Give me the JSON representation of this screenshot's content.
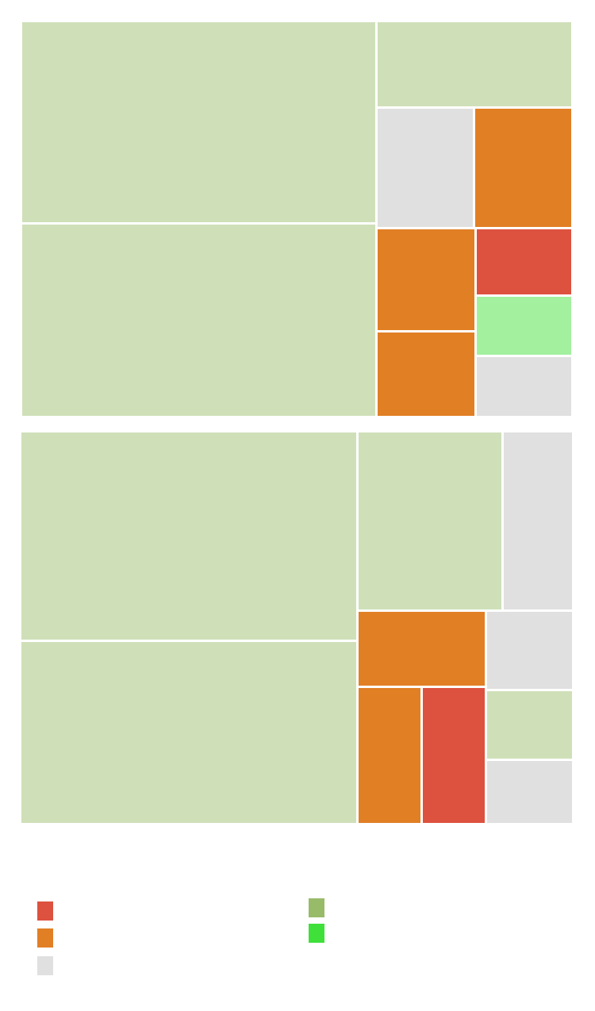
{
  "chart_data": [
    {
      "type": "treemap",
      "title": "",
      "tiles": [
        {
          "category": "c2",
          "value": 110000
        },
        {
          "category": "c2",
          "value": 105000
        },
        {
          "category": "c2",
          "value": 26000
        },
        {
          "category": "c3",
          "value": 18000
        },
        {
          "category": "c1",
          "value": 18000
        },
        {
          "category": "c1",
          "value": 15600
        },
        {
          "category": "c1",
          "value": 13000
        },
        {
          "category": "c0",
          "value": 10000
        },
        {
          "category": "c4",
          "value": 9000
        },
        {
          "category": "c3",
          "value": 9000
        }
      ]
    },
    {
      "type": "treemap",
      "title": "",
      "tiles": [
        {
          "category": "c2",
          "value": 109000
        },
        {
          "category": "c2",
          "value": 95000
        },
        {
          "category": "c2",
          "value": 40000
        },
        {
          "category": "c3",
          "value": 19500
        },
        {
          "category": "c1",
          "value": 15000
        },
        {
          "category": "c1",
          "value": 13600
        },
        {
          "category": "c0",
          "value": 13600
        },
        {
          "category": "c3",
          "value": 10600
        },
        {
          "category": "c2",
          "value": 9400
        },
        {
          "category": "c3",
          "value": 8600
        }
      ]
    }
  ],
  "categories": [
    {
      "key": "c0",
      "label": "",
      "color": "#dd513f"
    },
    {
      "key": "c1",
      "label": "",
      "color": "#e17f25"
    },
    {
      "key": "c2",
      "label": "",
      "color": "#cfe0b9"
    },
    {
      "key": "c3",
      "label": "",
      "color": "#e0e0e0"
    },
    {
      "key": "c4",
      "label": "",
      "color": "#a3f09f"
    }
  ],
  "legend": [
    {
      "label": "",
      "color": "#dd513f"
    },
    {
      "label": "",
      "color": "#e17f25"
    },
    {
      "label": "",
      "color": "#e0e0e0"
    },
    {
      "label": "",
      "color": "#98bb6a"
    },
    {
      "label": "",
      "color": "#3fe03a"
    }
  ]
}
